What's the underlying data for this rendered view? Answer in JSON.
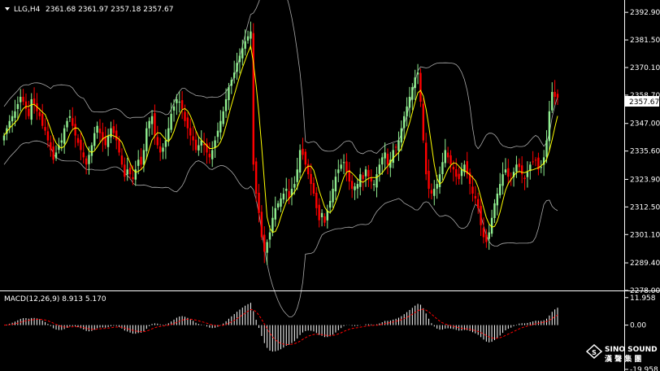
{
  "header": {
    "symbol_label": "LLG,H4",
    "ohlc": "2361.68 2361.97 2357.18 2357.67"
  },
  "macd": {
    "label": "MACD(12,26,9) 8.913 5.170",
    "axis_ticks": [
      "11.958",
      "0.00",
      "-19.958"
    ]
  },
  "current_price": "2357.67",
  "price_axis_ticks": [
    "2392.90",
    "2381.50",
    "2370.10",
    "2358.70",
    "2347.00",
    "2335.60",
    "2323.90",
    "2312.50",
    "2301.10",
    "2289.40",
    "2278.00"
  ],
  "watermark": {
    "brand_en": "SINO SOUND",
    "brand_cn": "漢 聲 集 團"
  },
  "colors": {
    "background": "#000000",
    "bull": "#90ee90",
    "bear": "#ff0000",
    "ma": "#ffff00",
    "band": "#a9a9a9",
    "signal": "#ff0000",
    "grid_text": "#ffffff"
  },
  "chart_data": {
    "type": "candlestick",
    "price_pane": {
      "ylim": [
        2278.0,
        2398.0
      ],
      "close_approx": [
        2342,
        2345,
        2348,
        2350,
        2352,
        2355,
        2358,
        2356,
        2353,
        2350,
        2357,
        2355,
        2352,
        2350,
        2346,
        2344,
        2340,
        2336,
        2332,
        2335,
        2338,
        2340,
        2345,
        2348,
        2350,
        2346,
        2342,
        2339,
        2336,
        2333,
        2330,
        2334,
        2338,
        2343,
        2346,
        2343,
        2340,
        2338,
        2342,
        2345,
        2343,
        2340,
        2335,
        2330,
        2325,
        2328,
        2326,
        2324,
        2328,
        2332,
        2330,
        2336,
        2345,
        2348,
        2350,
        2342,
        2338,
        2335,
        2337,
        2340,
        2345,
        2351,
        2354,
        2357,
        2356,
        2353,
        2348,
        2345,
        2342,
        2340,
        2336,
        2338,
        2340,
        2338,
        2335,
        2333,
        2336,
        2340,
        2344,
        2348,
        2352,
        2357,
        2362,
        2365,
        2368,
        2372,
        2375,
        2378,
        2381,
        2383,
        2385,
        2330,
        2318,
        2310,
        2300,
        2294,
        2298,
        2302,
        2308,
        2312,
        2314,
        2316,
        2318,
        2320,
        2316,
        2320,
        2322,
        2328,
        2336,
        2334,
        2330,
        2326,
        2322,
        2318,
        2312,
        2307,
        2310,
        2306,
        2311,
        2315,
        2320,
        2325,
        2328,
        2330,
        2331,
        2327,
        2323,
        2320,
        2321,
        2322,
        2326,
        2324,
        2328,
        2325,
        2323,
        2322,
        2326,
        2330,
        2333,
        2335,
        2330,
        2332,
        2336,
        2337,
        2340,
        2345,
        2350,
        2354,
        2358,
        2362,
        2366,
        2368,
        2356,
        2340,
        2326,
        2320,
        2318,
        2320,
        2322,
        2326,
        2331,
        2336,
        2333,
        2330,
        2328,
        2325,
        2324,
        2328,
        2330,
        2326,
        2322,
        2318,
        2316,
        2312,
        2305,
        2300,
        2298,
        2302,
        2308,
        2314,
        2318,
        2322,
        2326,
        2328,
        2325,
        2324,
        2327,
        2330,
        2329,
        2326,
        2324,
        2327,
        2330,
        2331,
        2332,
        2328,
        2329,
        2333,
        2340,
        2352,
        2360,
        2358,
        2357.67
      ],
      "current": 2357.67
    },
    "macd_pane": {
      "ylim": [
        -19.958,
        14.0
      ],
      "ticks": [
        11.958,
        0.0,
        -19.958
      ],
      "macd_value": 8.913,
      "signal_value": 5.17
    }
  }
}
